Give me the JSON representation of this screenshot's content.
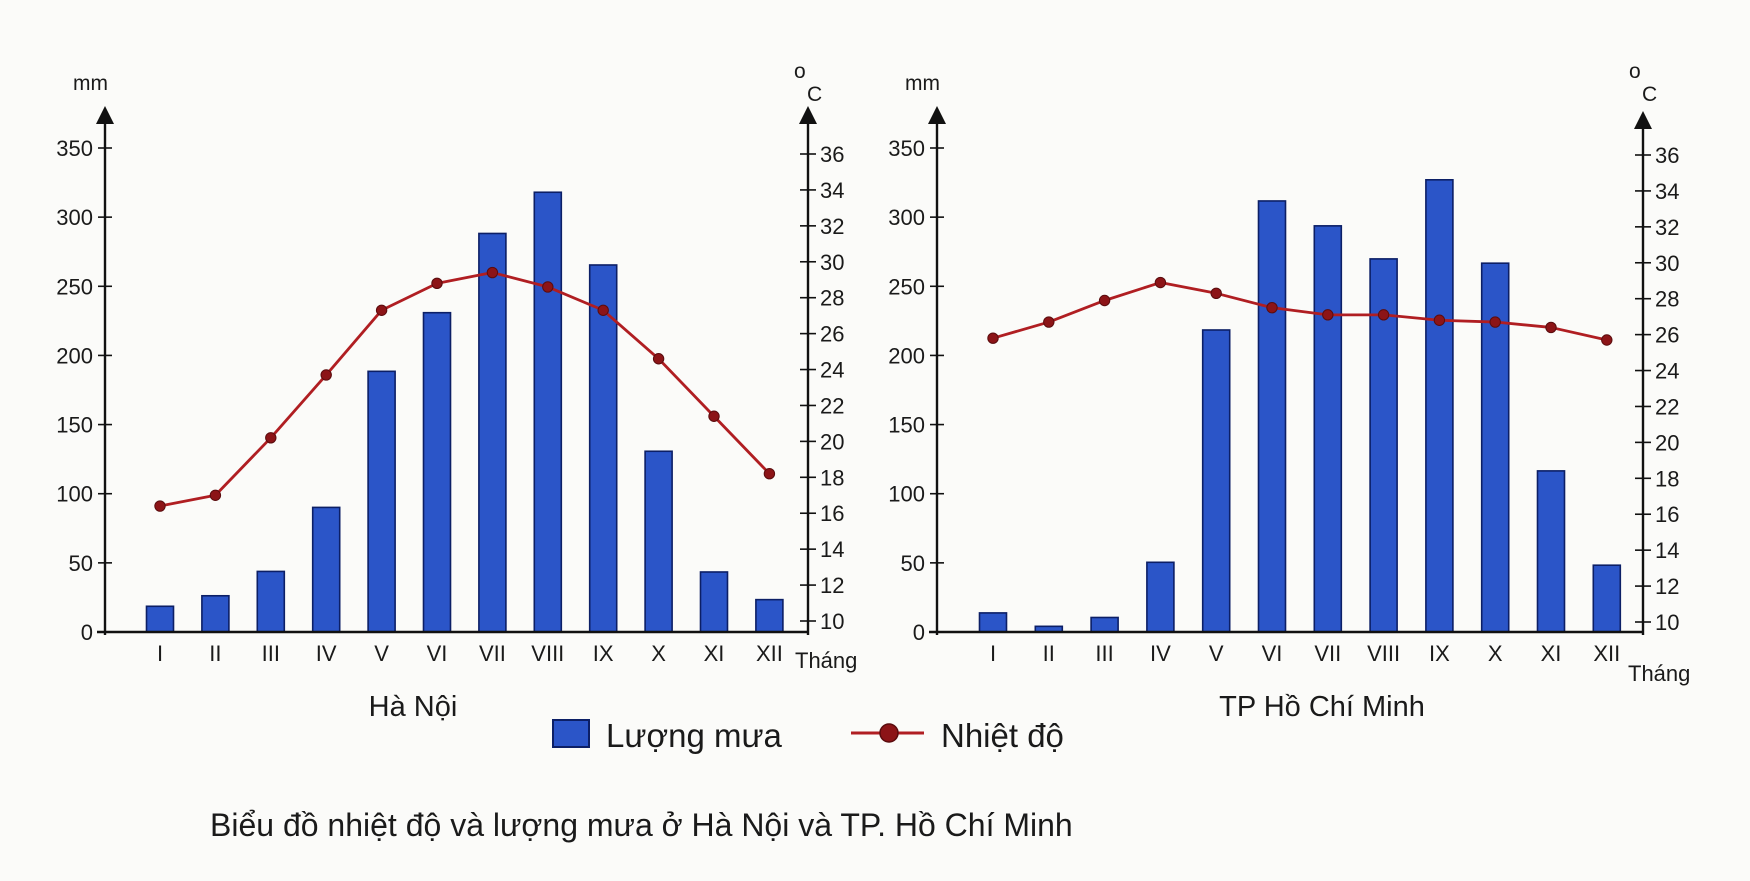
{
  "caption": "Biểu đồ nhiệt độ và lượng mưa ở Hà Nội và TP. Hồ Chí Minh",
  "legend": {
    "rain_label": "Lượng mưa",
    "temp_label": "Nhiệt độ"
  },
  "colors": {
    "bar_fill": "#2b55c8",
    "bar_stroke": "#0c1f66",
    "line": "#b01e22",
    "marker": "#8c1417",
    "axis": "#111111"
  },
  "chart_data": [
    {
      "type": "bar+line",
      "title": "Hà Nội",
      "xlabel": "Tháng",
      "ylabel_left": "mm",
      "ylabel_right_sup": "o",
      "ylabel_right": "C",
      "categories": [
        "I",
        "II",
        "III",
        "IV",
        "V",
        "VI",
        "VII",
        "VIII",
        "IX",
        "X",
        "XI",
        "XII"
      ],
      "rain_mm": [
        18.6,
        26.2,
        43.8,
        90.1,
        188.5,
        230.9,
        288.2,
        318.0,
        265.4,
        130.7,
        43.4,
        23.4
      ],
      "temp_c": [
        16.4,
        17.0,
        20.2,
        23.7,
        27.3,
        28.8,
        29.4,
        28.6,
        27.3,
        24.6,
        21.4,
        18.2
      ],
      "ylim_left": [
        0,
        350
      ],
      "ylim_right": [
        10,
        36
      ],
      "left_ticks": [
        0,
        50,
        100,
        150,
        200,
        250,
        300,
        350
      ],
      "right_ticks": [
        10,
        12,
        14,
        16,
        18,
        20,
        22,
        24,
        26,
        28,
        30,
        32,
        34,
        36
      ]
    },
    {
      "type": "bar+line",
      "title": "TP Hồ Chí Minh",
      "xlabel": "Tháng",
      "ylabel_left": "mm",
      "ylabel_right_sup": "o",
      "ylabel_right": "C",
      "categories": [
        "I",
        "II",
        "III",
        "IV",
        "V",
        "VI",
        "VII",
        "VIII",
        "IX",
        "X",
        "XI",
        "XII"
      ],
      "rain_mm": [
        13.8,
        4.1,
        10.5,
        50.4,
        218.4,
        311.7,
        293.7,
        269.8,
        327.0,
        266.7,
        116.5,
        48.3
      ],
      "temp_c": [
        25.8,
        26.7,
        27.9,
        28.9,
        28.3,
        27.5,
        27.1,
        27.1,
        26.8,
        26.7,
        26.4,
        25.7
      ],
      "ylim_left": [
        0,
        350
      ],
      "ylim_right": [
        10,
        36
      ],
      "left_ticks": [
        0,
        50,
        100,
        150,
        200,
        250,
        300,
        350
      ],
      "right_ticks": [
        10,
        12,
        14,
        16,
        18,
        20,
        22,
        24,
        26,
        28,
        30,
        32,
        34,
        36
      ]
    }
  ]
}
